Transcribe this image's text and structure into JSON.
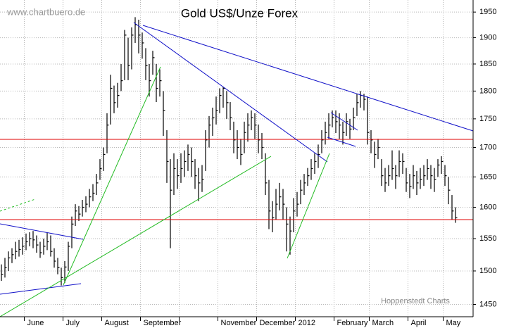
{
  "chart_data": {
    "type": "hlc",
    "title": "Gold US$/Unze Forex",
    "watermark": "www.chartbuero.de",
    "source": "Hoppenstedt Charts",
    "log_scale": true,
    "grid": true,
    "color": "#000000",
    "ylim": [
      1432,
      1974
    ],
    "yticks": [
      1450,
      1500,
      1550,
      1600,
      1650,
      1700,
      1750,
      1800,
      1850,
      1900,
      1950
    ],
    "periods": [
      {
        "label": null,
        "bars": [
          [
            1510,
            1485,
            1495
          ],
          [
            1520,
            1490,
            1505
          ],
          [
            1530,
            1500,
            1520
          ],
          [
            1535,
            1512,
            1525
          ],
          [
            1545,
            1518,
            1530
          ],
          [
            1548,
            1522,
            1533
          ],
          [
            1552,
            1525,
            1538
          ]
        ]
      },
      {
        "label": "June",
        "bars": [
          [
            1558,
            1532,
            1545
          ],
          [
            1560,
            1538,
            1550
          ],
          [
            1562,
            1535,
            1548
          ],
          [
            1555,
            1528,
            1540
          ],
          [
            1545,
            1520,
            1528
          ],
          [
            1550,
            1525,
            1538
          ],
          [
            1560,
            1532,
            1545
          ],
          [
            1555,
            1522,
            1530
          ],
          [
            1535,
            1505,
            1515
          ],
          [
            1520,
            1495,
            1505
          ],
          [
            1505,
            1478,
            1490
          ]
        ]
      },
      {
        "label": "July",
        "bars": [
          [
            1515,
            1482,
            1506
          ],
          [
            1545,
            1500,
            1538
          ],
          [
            1585,
            1535,
            1573
          ],
          [
            1605,
            1570,
            1594
          ],
          [
            1602,
            1578,
            1589
          ],
          [
            1612,
            1585,
            1600
          ],
          [
            1618,
            1592,
            1605
          ],
          [
            1630,
            1600,
            1617
          ],
          [
            1638,
            1610,
            1623
          ],
          [
            1655,
            1620,
            1640
          ],
          [
            1680,
            1645,
            1664
          ]
        ]
      },
      {
        "label": "August",
        "bars": [
          [
            1700,
            1660,
            1688
          ],
          [
            1760,
            1690,
            1739
          ],
          [
            1830,
            1740,
            1805
          ],
          [
            1810,
            1760,
            1779
          ],
          [
            1815,
            1770,
            1792
          ],
          [
            1850,
            1800,
            1819
          ],
          [
            1915,
            1820,
            1905
          ],
          [
            1900,
            1820,
            1847
          ],
          [
            1920,
            1840,
            1905
          ],
          [
            1940,
            1890,
            1925
          ],
          [
            1935,
            1870,
            1905
          ]
        ]
      },
      {
        "label": "September",
        "bars": [
          [
            1910,
            1860,
            1890
          ],
          [
            1880,
            1820,
            1847
          ],
          [
            1850,
            1790,
            1819
          ],
          [
            1875,
            1830,
            1862
          ],
          [
            1850,
            1780,
            1805
          ],
          [
            1840,
            1790,
            1819
          ],
          [
            1800,
            1720,
            1765
          ],
          [
            1730,
            1640,
            1676
          ],
          [
            1680,
            1535,
            1628
          ],
          [
            1690,
            1620,
            1664
          ],
          [
            1680,
            1630,
            1652
          ]
        ]
      },
      {
        "label": null,
        "bars": [
          [
            1690,
            1640,
            1664
          ],
          [
            1695,
            1650,
            1676
          ],
          [
            1705,
            1660,
            1688
          ],
          [
            1700,
            1650,
            1676
          ],
          [
            1680,
            1630,
            1652
          ],
          [
            1665,
            1610,
            1640
          ],
          [
            1670,
            1625,
            1646
          ],
          [
            1730,
            1660,
            1713
          ],
          [
            1755,
            1700,
            1739
          ],
          [
            1770,
            1720,
            1752
          ],
          [
            1790,
            1740,
            1765
          ]
        ]
      },
      {
        "label": "November",
        "bars": [
          [
            1805,
            1760,
            1792
          ],
          [
            1808,
            1770,
            1805
          ],
          [
            1800,
            1750,
            1779
          ],
          [
            1780,
            1730,
            1752
          ],
          [
            1745,
            1690,
            1713
          ],
          [
            1730,
            1680,
            1700
          ],
          [
            1715,
            1670,
            1688
          ],
          [
            1745,
            1690,
            1726
          ],
          [
            1760,
            1710,
            1739
          ],
          [
            1765,
            1730,
            1752
          ],
          [
            1760,
            1715,
            1739
          ]
        ]
      },
      {
        "label": "December",
        "bars": [
          [
            1740,
            1690,
            1713
          ],
          [
            1725,
            1680,
            1700
          ],
          [
            1690,
            1620,
            1640
          ],
          [
            1645,
            1565,
            1594
          ],
          [
            1610,
            1560,
            1583
          ],
          [
            1630,
            1580,
            1605
          ],
          [
            1640,
            1595,
            1617
          ],
          [
            1630,
            1580,
            1605
          ],
          [
            1600,
            1530,
            1573
          ],
          [
            1585,
            1525,
            1562
          ],
          [
            1615,
            1560,
            1594
          ]
        ]
      },
      {
        "label": "2012",
        "bars": [
          [
            1625,
            1585,
            1605
          ],
          [
            1645,
            1605,
            1628
          ],
          [
            1655,
            1620,
            1640
          ],
          [
            1665,
            1635,
            1652
          ],
          [
            1680,
            1645,
            1664
          ],
          [
            1690,
            1655,
            1676
          ],
          [
            1705,
            1665,
            1688
          ],
          [
            1730,
            1690,
            1713
          ],
          [
            1745,
            1705,
            1726
          ],
          [
            1760,
            1715,
            1739
          ],
          [
            1765,
            1735,
            1752
          ]
        ]
      },
      {
        "label": "February",
        "bars": [
          [
            1765,
            1725,
            1745
          ],
          [
            1760,
            1715,
            1739
          ],
          [
            1745,
            1705,
            1726
          ],
          [
            1760,
            1720,
            1745
          ],
          [
            1750,
            1715,
            1732
          ],
          [
            1770,
            1730,
            1752
          ],
          [
            1795,
            1755,
            1779
          ],
          [
            1800,
            1770,
            1792
          ],
          [
            1795,
            1765,
            1785
          ],
          [
            1790,
            1705,
            1726
          ]
        ]
      },
      {
        "label": "March",
        "bars": [
          [
            1730,
            1690,
            1713
          ],
          [
            1710,
            1665,
            1688
          ],
          [
            1715,
            1680,
            1700
          ],
          [
            1680,
            1635,
            1652
          ],
          [
            1665,
            1625,
            1640
          ],
          [
            1670,
            1635,
            1652
          ],
          [
            1695,
            1645,
            1664
          ],
          [
            1670,
            1630,
            1652
          ],
          [
            1695,
            1650,
            1676
          ],
          [
            1690,
            1655,
            1676
          ],
          [
            1665,
            1625,
            1640
          ]
        ]
      },
      {
        "label": "April",
        "bars": [
          [
            1655,
            1615,
            1634
          ],
          [
            1670,
            1630,
            1652
          ],
          [
            1660,
            1620,
            1640
          ],
          [
            1665,
            1630,
            1646
          ],
          [
            1670,
            1635,
            1652
          ],
          [
            1680,
            1645,
            1664
          ],
          [
            1670,
            1630,
            1652
          ],
          [
            1665,
            1625,
            1646
          ],
          [
            1680,
            1650,
            1670
          ],
          [
            1685,
            1655,
            1676
          ]
        ]
      },
      {
        "label": "May",
        "bars": [
          [
            1670,
            1635,
            1652
          ],
          [
            1650,
            1605,
            1628
          ],
          [
            1620,
            1580,
            1594
          ],
          [
            1600,
            1575,
            1583
          ]
        ]
      }
    ]
  }
}
